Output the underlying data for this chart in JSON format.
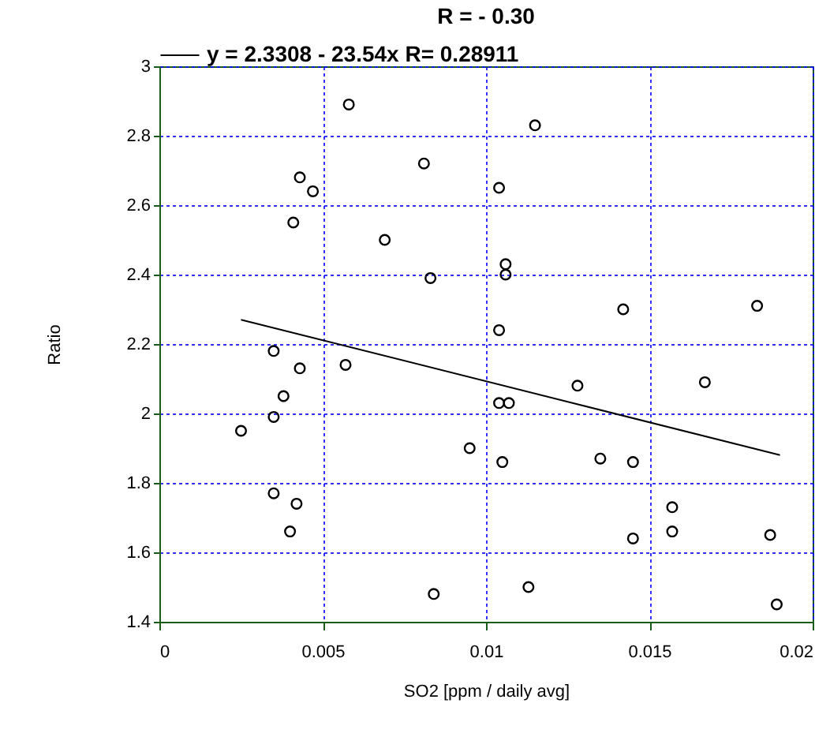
{
  "chart_data": {
    "type": "scatter",
    "title": "R = - 0.30",
    "xlabel": "SO2 [ppm / daily avg]",
    "ylabel": "Ratio",
    "xlim": [
      0,
      0.02
    ],
    "xticks": [
      0,
      0.005,
      0.01,
      0.015,
      0.02
    ],
    "ylim": [
      1.4,
      3
    ],
    "yticks": [
      1.4,
      1.6,
      1.8,
      2,
      2.2,
      2.4,
      2.6,
      2.8,
      3
    ],
    "grid": true,
    "legend": "top",
    "series": [
      {
        "color": "#000000",
        "marker": "circle",
        "x": [
          0.0025,
          0.0035,
          0.0035,
          0.0035,
          0.0038,
          0.004,
          0.0041,
          0.0042,
          0.0043,
          0.0043,
          0.0047,
          0.0057,
          0.0058,
          0.0069,
          0.0081,
          0.0083,
          0.0084,
          0.0095,
          0.0104,
          0.0104,
          0.0104,
          0.0105,
          0.0106,
          0.0106,
          0.0107,
          0.0113,
          0.0115,
          0.0128,
          0.0135,
          0.0142,
          0.0145,
          0.0145,
          0.0157,
          0.0157,
          0.0167,
          0.0183,
          0.0187,
          0.0189
        ],
        "values": [
          1.95,
          2.18,
          1.99,
          1.77,
          2.05,
          1.66,
          2.55,
          1.74,
          2.68,
          2.13,
          2.64,
          2.14,
          2.89,
          2.5,
          2.72,
          2.39,
          1.48,
          1.9,
          2.65,
          2.24,
          2.03,
          1.86,
          2.43,
          2.4,
          2.03,
          1.5,
          2.83,
          2.08,
          1.87,
          2.3,
          1.86,
          1.64,
          1.73,
          1.66,
          2.09,
          2.31,
          1.65,
          1.45
        ]
      },
      {
        "type": "line",
        "name": "y = 2.3308 - 23.54x   R= 0.28911",
        "color": "#000000",
        "marker": "none",
        "x": [
          0.0025,
          0.019
        ],
        "values": [
          2.27,
          1.88
        ]
      }
    ]
  }
}
